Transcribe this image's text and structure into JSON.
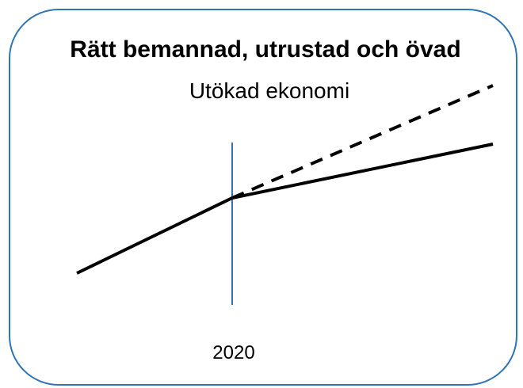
{
  "title": "Rätt bemannad, utrustad och övad",
  "subtitle": "Utökad ekonomi",
  "marker_label": "2020"
}
